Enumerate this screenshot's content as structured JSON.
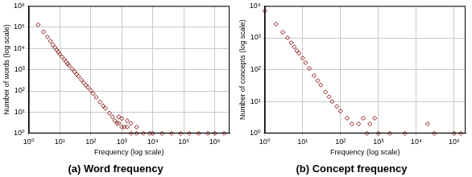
{
  "chart_data": [
    {
      "type": "scatter",
      "title": "(a) Word frequency",
      "x_label": "Frequency (log scale)",
      "y_label": "Number of words (log scale)",
      "log": true,
      "grid": true,
      "color": "#8b1a1a",
      "marker": "diamond",
      "x": [
        2,
        3,
        4,
        5,
        6,
        7,
        8,
        9,
        10,
        12,
        14,
        16,
        18,
        20,
        25,
        30,
        35,
        40,
        50,
        60,
        70,
        80,
        100,
        120,
        150,
        200,
        250,
        300,
        400,
        500,
        600,
        700,
        800,
        800,
        1000,
        1000,
        1200,
        1500,
        1500,
        2000,
        2000,
        3000,
        3000,
        5000,
        8000,
        10000,
        20000,
        40000,
        80000,
        150000,
        300000,
        600000,
        1000000,
        2000000
      ],
      "values": [
        130000,
        60000,
        35000,
        22000,
        15000,
        11000,
        8500,
        6800,
        5500,
        4000,
        3000,
        2400,
        1900,
        1600,
        1100,
        800,
        600,
        480,
        330,
        240,
        185,
        150,
        105,
        75,
        50,
        30,
        20,
        15,
        9,
        6,
        4,
        3,
        3,
        6,
        2,
        5,
        2,
        2,
        4,
        1,
        3,
        1,
        2,
        1,
        1,
        1,
        1,
        1,
        1,
        1,
        1,
        1,
        1,
        1
      ],
      "xlim": [
        1,
        3000000
      ],
      "ylim": [
        1,
        1000000
      ],
      "xticks": [
        {
          "value": 1,
          "label": "10⁰"
        },
        {
          "value": 10,
          "label": "10¹"
        },
        {
          "value": 100,
          "label": "10²"
        },
        {
          "value": 1000,
          "label": "10³"
        },
        {
          "value": 10000,
          "label": "10⁴"
        },
        {
          "value": 100000,
          "label": "10⁵"
        },
        {
          "value": 1000000,
          "label": "10⁶"
        }
      ],
      "yticks": [
        {
          "value": 1,
          "label": "10⁰"
        },
        {
          "value": 10,
          "label": "10¹"
        },
        {
          "value": 100,
          "label": "10²"
        },
        {
          "value": 1000,
          "label": "10³"
        },
        {
          "value": 10000,
          "label": "10⁴"
        },
        {
          "value": 100000,
          "label": "10⁵"
        },
        {
          "value": 1000000,
          "label": "10⁶"
        }
      ]
    },
    {
      "type": "scatter",
      "title": "(b) Concept frequency",
      "x_label": "Frequency (log scale)",
      "y_label": "Number of concepts (log scale)",
      "log": true,
      "grid": true,
      "color": "#8b1a1a",
      "marker": "diamond",
      "x": [
        1,
        2,
        3,
        4,
        5,
        6,
        7,
        8,
        10,
        12,
        15,
        20,
        25,
        30,
        40,
        50,
        60,
        80,
        100,
        150,
        200,
        300,
        400,
        500,
        600,
        800,
        1000,
        2000,
        5000,
        20000,
        30000,
        100000,
        150000
      ],
      "values": [
        7000,
        2700,
        1500,
        1000,
        700,
        520,
        400,
        330,
        230,
        165,
        110,
        65,
        45,
        33,
        20,
        14,
        10,
        7,
        5,
        3,
        2,
        2,
        3,
        1,
        2,
        3,
        1,
        1,
        1,
        2,
        1,
        1,
        1
      ],
      "xlim": [
        1,
        200000
      ],
      "ylim": [
        1,
        10000
      ],
      "xticks": [
        {
          "value": 1,
          "label": "10⁰"
        },
        {
          "value": 10,
          "label": "10¹"
        },
        {
          "value": 100,
          "label": "10²"
        },
        {
          "value": 1000,
          "label": "10³"
        },
        {
          "value": 10000,
          "label": "10⁴"
        },
        {
          "value": 100000,
          "label": "10⁵"
        }
      ],
      "yticks": [
        {
          "value": 1,
          "label": "10⁰"
        },
        {
          "value": 10,
          "label": "10¹"
        },
        {
          "value": 100,
          "label": "10²"
        },
        {
          "value": 1000,
          "label": "10³"
        },
        {
          "value": 10000,
          "label": "10⁴"
        }
      ]
    }
  ]
}
